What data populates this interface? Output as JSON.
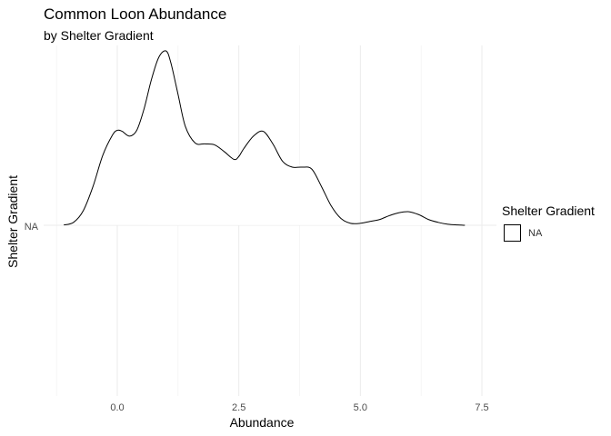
{
  "chart_data": {
    "type": "ridgeline",
    "title": "Common Loon Abundance",
    "subtitle": "by Shelter Gradient",
    "xlabel": "Abundance",
    "ylabel": "Shelter Gradient",
    "xlim": [
      -1.25,
      7.5
    ],
    "x_ticks": [
      0.0,
      2.5,
      5.0,
      7.5
    ],
    "x_tick_labels": [
      "0.0",
      "2.5",
      "5.0",
      "7.5"
    ],
    "y_tick_labels": [
      "NA"
    ],
    "grid": true,
    "legend": {
      "title": "Shelter Gradient",
      "position": "right",
      "entries": [
        "NA"
      ]
    },
    "series": [
      {
        "category": "NA",
        "x": [
          -1.1,
          -0.9,
          -0.7,
          -0.5,
          -0.3,
          -0.1,
          0.0,
          0.1,
          0.25,
          0.4,
          0.55,
          0.7,
          0.85,
          1.0,
          1.1,
          1.25,
          1.4,
          1.6,
          1.8,
          2.0,
          2.2,
          2.4,
          2.5,
          2.6,
          2.8,
          3.0,
          3.2,
          3.4,
          3.6,
          3.8,
          4.0,
          4.2,
          4.4,
          4.6,
          4.8,
          5.0,
          5.2,
          5.4,
          5.6,
          5.8,
          6.0,
          6.2,
          6.4,
          6.6,
          6.8,
          7.0,
          7.15
        ],
        "y": [
          0.003,
          0.03,
          0.15,
          0.4,
          0.72,
          0.93,
          0.98,
          0.97,
          0.92,
          0.98,
          1.2,
          1.5,
          1.73,
          1.8,
          1.68,
          1.35,
          1.02,
          0.85,
          0.84,
          0.83,
          0.76,
          0.68,
          0.71,
          0.79,
          0.92,
          0.97,
          0.84,
          0.66,
          0.6,
          0.6,
          0.58,
          0.4,
          0.2,
          0.07,
          0.02,
          0.02,
          0.04,
          0.06,
          0.1,
          0.13,
          0.14,
          0.11,
          0.06,
          0.03,
          0.01,
          0.003,
          0.0
        ]
      }
    ]
  }
}
